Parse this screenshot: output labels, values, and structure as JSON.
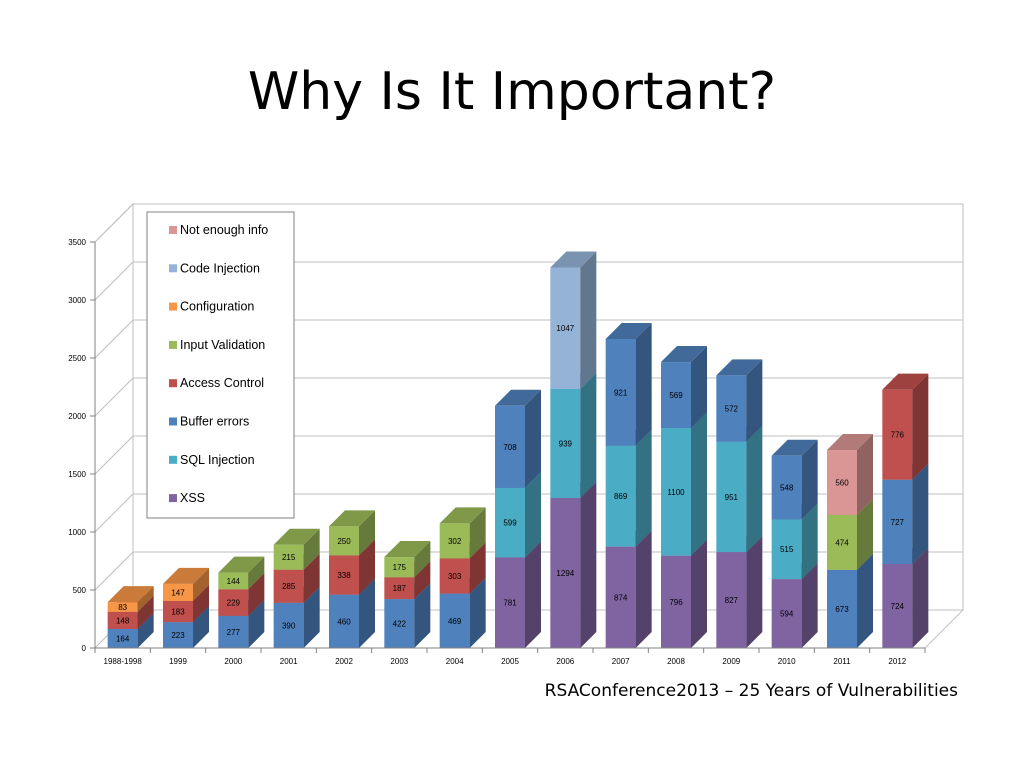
{
  "slide": {
    "title": "Why Is It Important?",
    "footer": "RSAConference2013 – 25 Years of Vulnerabilities"
  },
  "chart_data": {
    "type": "bar",
    "stacked": true,
    "three_d": true,
    "title": "",
    "xlabel": "",
    "ylabel": "",
    "ylim": [
      0,
      3500
    ],
    "yticks": [
      0,
      500,
      1000,
      1500,
      2000,
      2500,
      3000,
      3500
    ],
    "grid": true,
    "legend_position": "top-left",
    "categories": [
      "1988-1998",
      "1999",
      "2000",
      "2001",
      "2002",
      "2003",
      "2004",
      "2005",
      "2006",
      "2007",
      "2008",
      "2009",
      "2010",
      "2011",
      "2012"
    ],
    "series": [
      {
        "name": "XSS",
        "color": "#8064a2",
        "values": [
          null,
          null,
          null,
          null,
          null,
          null,
          null,
          781,
          1294,
          874,
          796,
          827,
          594,
          null,
          724
        ]
      },
      {
        "name": "SQL Injection",
        "color": "#4bacc6",
        "values": [
          null,
          null,
          null,
          null,
          null,
          null,
          null,
          599,
          939,
          869,
          1100,
          951,
          515,
          null,
          null
        ]
      },
      {
        "name": "Buffer errors",
        "color": "#4f81bd",
        "values": [
          164,
          223,
          277,
          390,
          460,
          422,
          469,
          708,
          null,
          921,
          569,
          572,
          548,
          673,
          727
        ]
      },
      {
        "name": "Access Control",
        "color": "#c0504d",
        "values": [
          148,
          183,
          229,
          285,
          338,
          187,
          303,
          null,
          null,
          null,
          null,
          null,
          null,
          null,
          776
        ]
      },
      {
        "name": "Input Validation",
        "color": "#9bbb59",
        "values": [
          null,
          null,
          144,
          215,
          250,
          175,
          302,
          null,
          null,
          null,
          null,
          null,
          null,
          474,
          null
        ]
      },
      {
        "name": "Configuration",
        "color": "#f79646",
        "values": [
          83,
          147,
          null,
          null,
          null,
          null,
          null,
          null,
          null,
          null,
          null,
          null,
          null,
          null,
          null
        ]
      },
      {
        "name": "Code Injection",
        "color": "#95b3d7",
        "values": [
          null,
          null,
          null,
          null,
          null,
          null,
          null,
          null,
          1047,
          null,
          null,
          null,
          null,
          null,
          null
        ]
      },
      {
        "name": "Not enough info",
        "color": "#d99694",
        "values": [
          null,
          null,
          null,
          null,
          null,
          null,
          null,
          null,
          null,
          null,
          null,
          null,
          null,
          560,
          null
        ]
      }
    ],
    "legend_order": [
      "Not enough info",
      "Code Injection",
      "Configuration",
      "Input Validation",
      "Access Control",
      "Buffer errors",
      "SQL Injection",
      "XSS"
    ]
  }
}
